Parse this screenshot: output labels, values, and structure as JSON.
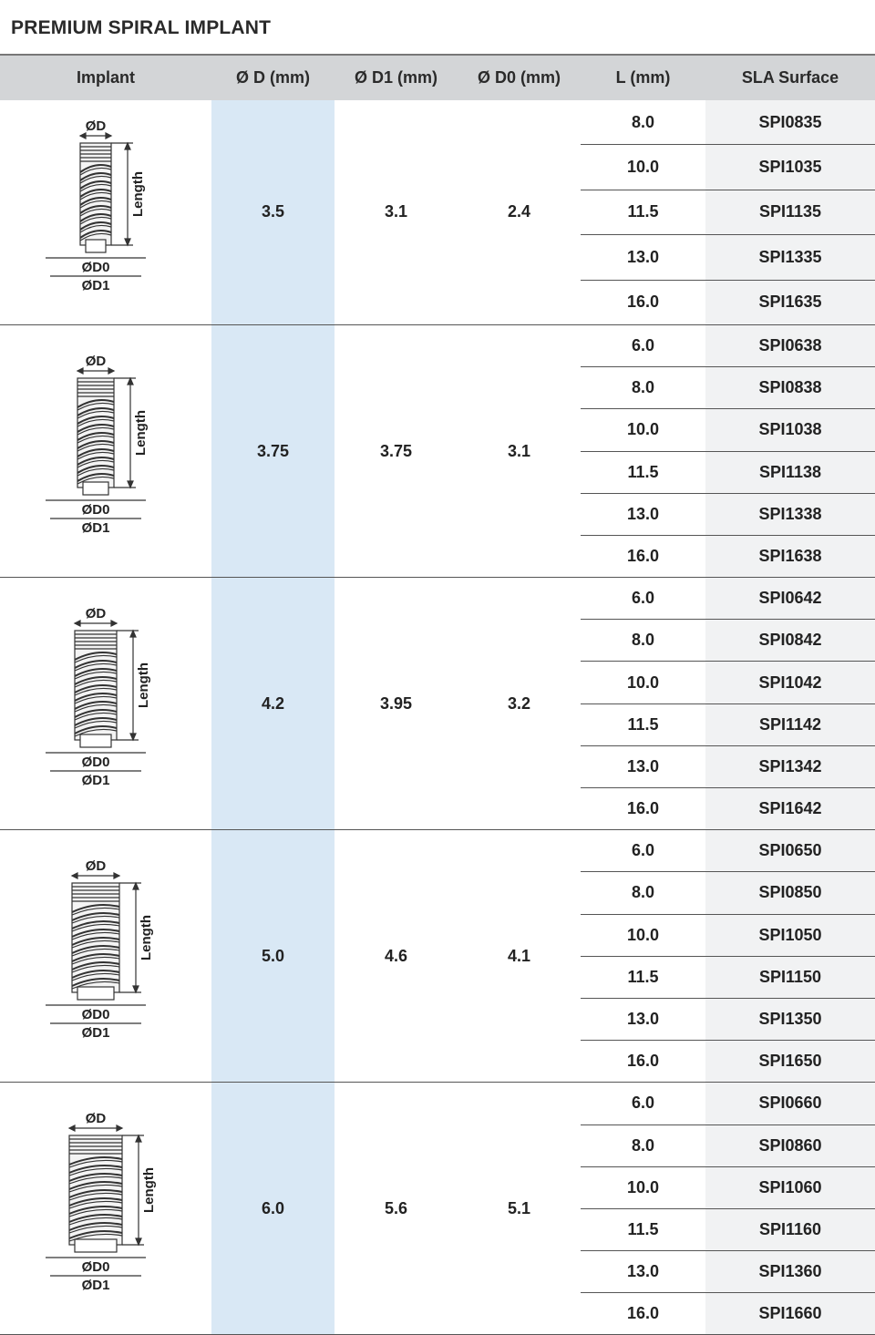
{
  "title": "PREMIUM SPIRAL IMPLANT",
  "headers": [
    "Implant",
    "Ø D (mm)",
    "Ø D1 (mm)",
    "Ø D0 (mm)",
    "L (mm)",
    "SLA Surface"
  ],
  "drawing_labels": {
    "d": "ØD",
    "length": "Length",
    "d0": "ØD0",
    "d1": "ØD1"
  },
  "colors": {
    "header_bg": "#d3d5d7",
    "d_column_bg": "#d9e8f5",
    "sla_column_bg": "#f1f2f3"
  },
  "groups": [
    {
      "d": "3.5",
      "d1": "3.1",
      "d0": "2.4",
      "rows": [
        {
          "l": "8.0",
          "sla": "SPI0835"
        },
        {
          "l": "10.0",
          "sla": "SPI1035"
        },
        {
          "l": "11.5",
          "sla": "SPI1135"
        },
        {
          "l": "13.0",
          "sla": "SPI1335"
        },
        {
          "l": "16.0",
          "sla": "SPI1635"
        }
      ]
    },
    {
      "d": "3.75",
      "d1": "3.75",
      "d0": "3.1",
      "rows": [
        {
          "l": "6.0",
          "sla": "SPI0638"
        },
        {
          "l": "8.0",
          "sla": "SPI0838"
        },
        {
          "l": "10.0",
          "sla": "SPI1038"
        },
        {
          "l": "11.5",
          "sla": "SPI1138"
        },
        {
          "l": "13.0",
          "sla": "SPI1338"
        },
        {
          "l": "16.0",
          "sla": "SPI1638"
        }
      ]
    },
    {
      "d": "4.2",
      "d1": "3.95",
      "d0": "3.2",
      "rows": [
        {
          "l": "6.0",
          "sla": "SPI0642"
        },
        {
          "l": "8.0",
          "sla": "SPI0842"
        },
        {
          "l": "10.0",
          "sla": "SPI1042"
        },
        {
          "l": "11.5",
          "sla": "SPI1142"
        },
        {
          "l": "13.0",
          "sla": "SPI1342"
        },
        {
          "l": "16.0",
          "sla": "SPI1642"
        }
      ]
    },
    {
      "d": "5.0",
      "d1": "4.6",
      "d0": "4.1",
      "rows": [
        {
          "l": "6.0",
          "sla": "SPI0650"
        },
        {
          "l": "8.0",
          "sla": "SPI0850"
        },
        {
          "l": "10.0",
          "sla": "SPI1050"
        },
        {
          "l": "11.5",
          "sla": "SPI1150"
        },
        {
          "l": "13.0",
          "sla": "SPI1350"
        },
        {
          "l": "16.0",
          "sla": "SPI1650"
        }
      ]
    },
    {
      "d": "6.0",
      "d1": "5.6",
      "d0": "5.1",
      "rows": [
        {
          "l": "6.0",
          "sla": "SPI0660"
        },
        {
          "l": "8.0",
          "sla": "SPI0860"
        },
        {
          "l": "10.0",
          "sla": "SPI1060"
        },
        {
          "l": "11.5",
          "sla": "SPI1160"
        },
        {
          "l": "13.0",
          "sla": "SPI1360"
        },
        {
          "l": "16.0",
          "sla": "SPI1660"
        }
      ]
    }
  ]
}
